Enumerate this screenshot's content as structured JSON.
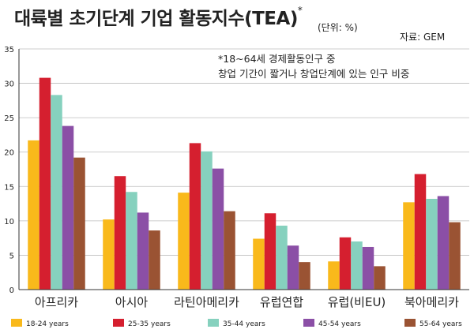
{
  "header": {
    "title": "대륙별 초기단계 기업 활동지수(TEA)",
    "title_mark": "*",
    "unit": "(단위: %)",
    "source": "자료: GEM"
  },
  "chart_data": {
    "type": "bar",
    "title": "대륙별 초기단계 기업 활동지수(TEA)",
    "categories": [
      "아프리카",
      "아시아",
      "라틴아메리카",
      "유럽연합",
      "유럽(비EU)",
      "북아메리카"
    ],
    "series": [
      {
        "name": "18-24 years",
        "color": "#f9b91b",
        "values": [
          21.7,
          10.2,
          14.1,
          7.4,
          4.1,
          12.7
        ]
      },
      {
        "name": "25-35 years",
        "color": "#d51f2f",
        "values": [
          30.8,
          16.5,
          21.3,
          11.1,
          7.6,
          16.8
        ]
      },
      {
        "name": "35-44 years",
        "color": "#86d1be",
        "values": [
          28.3,
          14.2,
          20.1,
          9.3,
          7.0,
          13.2
        ]
      },
      {
        "name": "45-54 years",
        "color": "#8b4fa6",
        "values": [
          23.8,
          11.2,
          17.6,
          6.4,
          6.2,
          13.6
        ]
      },
      {
        "name": "55-64 years",
        "color": "#9a5333",
        "values": [
          19.2,
          8.6,
          11.4,
          4.0,
          3.4,
          9.8
        ]
      }
    ],
    "ylim": [
      0,
      35
    ],
    "yticks": [
      0,
      5,
      10,
      15,
      20,
      25,
      30,
      35
    ],
    "annotation": [
      "*18~64세 경제활동인구 중",
      "창업 기간이 짧거나 창업단계에 있는 인구 비중"
    ],
    "grid": true,
    "legend_position": "bottom",
    "grid_color": "#bdbdbd",
    "axis_color": "#333333"
  }
}
